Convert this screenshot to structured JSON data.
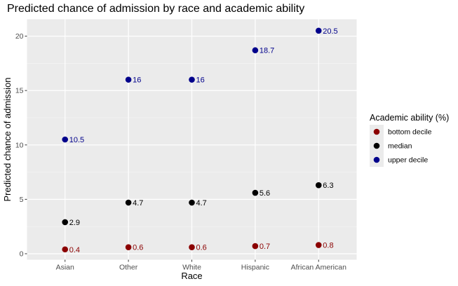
{
  "chart_data": {
    "type": "scatter",
    "title": "Predicted chance of admission by race and academic ability",
    "xlabel": "Race",
    "ylabel": "Predicted chance of admission",
    "categories": [
      "Asian",
      "Other",
      "White",
      "Hispanic",
      "African American"
    ],
    "ylim": [
      -0.55,
      21.55
    ],
    "yticks": [
      0,
      5,
      10,
      15,
      20
    ],
    "grid": true,
    "legend_position": "right",
    "legend_title": "Academic ability (%)",
    "series": [
      {
        "name": "bottom decile",
        "color": "#8b0000",
        "values": [
          0.4,
          0.6,
          0.6,
          0.7,
          0.8
        ],
        "labels": [
          "0.4",
          "0.6",
          "0.6",
          "0.7",
          "0.8"
        ]
      },
      {
        "name": "median",
        "color": "#000000",
        "values": [
          2.9,
          4.7,
          4.7,
          5.6,
          6.3
        ],
        "labels": [
          "2.9",
          "4.7",
          "4.7",
          "5.6",
          "6.3"
        ]
      },
      {
        "name": "upper decile",
        "color": "#00008b",
        "values": [
          10.5,
          16,
          16,
          18.7,
          20.5
        ],
        "labels": [
          "10.5",
          "16",
          "16",
          "18.7",
          "20.5"
        ]
      }
    ]
  }
}
